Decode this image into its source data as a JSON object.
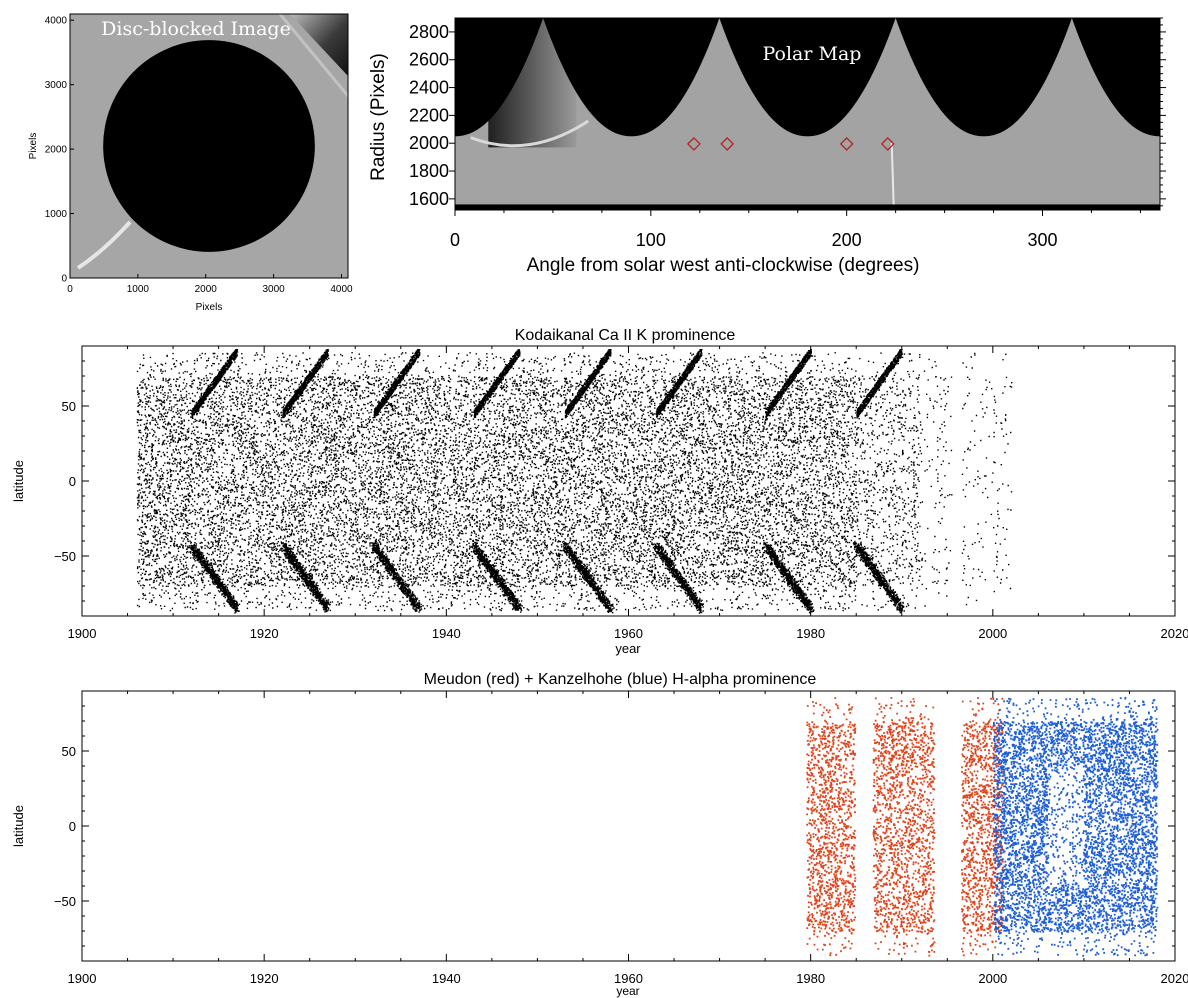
{
  "chart_data": [
    {
      "type": "heatmap",
      "title": "Disc-blocked Image",
      "xlabel": "Pixels",
      "ylabel": "Pixels",
      "xlim": [
        0,
        4096
      ],
      "ylim": [
        0,
        4096
      ],
      "xticks": [
        0,
        1000,
        2000,
        3000,
        4000
      ],
      "yticks": [
        0,
        1000,
        2000,
        3000,
        4000
      ],
      "grid": false,
      "disc": {
        "center": [
          2048,
          2048
        ],
        "radius": 1600
      }
    },
    {
      "type": "heatmap",
      "title": "Polar Map",
      "xlabel": "Angle from solar west anti-clockwise (degrees)",
      "ylabel": "Radius (Pixels)",
      "xlim": [
        0,
        360
      ],
      "ylim": [
        1520,
        2900
      ],
      "xticks": [
        0,
        100,
        200,
        300
      ],
      "yticks": [
        1600,
        1800,
        2000,
        2200,
        2400,
        2600,
        2800
      ],
      "grid": false,
      "masked_edge_peaks_deg": [
        45,
        135,
        225,
        315
      ],
      "masked_edge_min_radius": 2050,
      "markers": [
        {
          "x": 122,
          "y": 1995,
          "color": "#b22222"
        },
        {
          "x": 139,
          "y": 1995,
          "color": "#b22222"
        },
        {
          "x": 200,
          "y": 1995,
          "color": "#b22222"
        },
        {
          "x": 221,
          "y": 1995,
          "color": "#b22222"
        }
      ]
    },
    {
      "type": "scatter",
      "title": "Kodaikanal Ca II K prominence",
      "xlabel": "year",
      "ylabel": "latitude",
      "xlim": [
        1900,
        2020
      ],
      "ylim": [
        -90,
        90
      ],
      "xticks": [
        1900,
        1920,
        1940,
        1960,
        1980,
        2000,
        2020
      ],
      "yticks": [
        -50,
        0,
        50
      ],
      "grid": false,
      "series": [
        {
          "color": "#000000",
          "x_range": [
            1906,
            2002
          ],
          "y_range": [
            -88,
            88
          ],
          "cycle_minima": [
            1913,
            1923,
            1933,
            1944,
            1954,
            1964,
            1976,
            1986
          ]
        }
      ]
    },
    {
      "type": "scatter",
      "title": "Meudon (red) + Kanzelhohe (blue) H-alpha prominence",
      "xlabel": "year",
      "ylabel": "latitude",
      "xlim": [
        1900,
        2020
      ],
      "ylim": [
        -90,
        90
      ],
      "xticks": [
        1900,
        1920,
        1940,
        1960,
        1980,
        2000,
        2020
      ],
      "yticks": [
        -50,
        0,
        50
      ],
      "grid": false,
      "series": [
        {
          "color": "#e0441c",
          "x_range": [
            1979.5,
            2001
          ],
          "y_range": [
            -88,
            88
          ]
        },
        {
          "color": "#1f5fd6",
          "x_range": [
            2000,
            2018
          ],
          "y_range": [
            -88,
            88
          ]
        }
      ]
    }
  ]
}
